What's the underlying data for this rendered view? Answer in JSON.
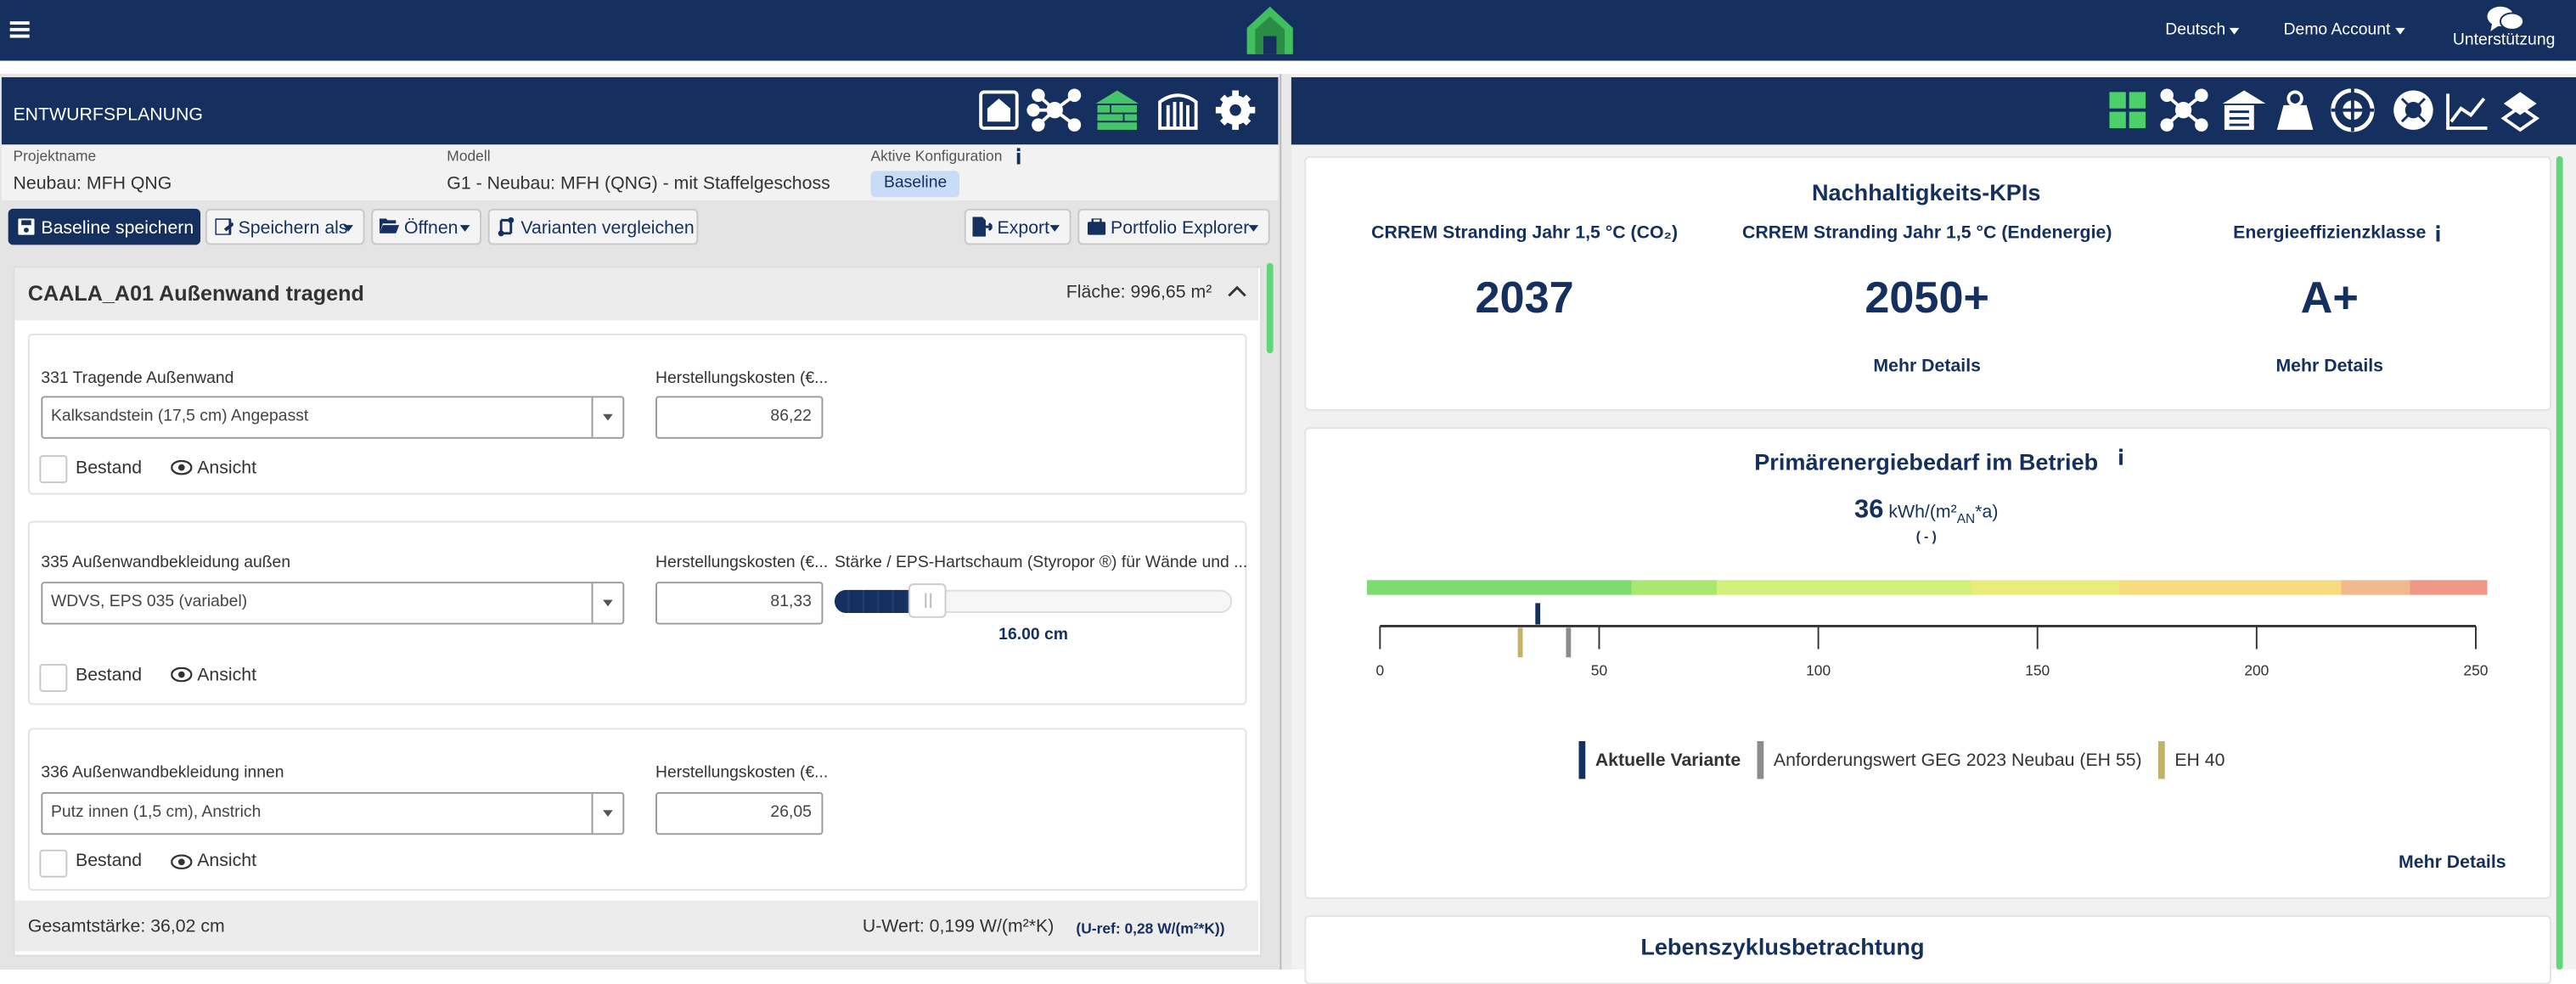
{
  "top_bar": {
    "language": "Deutsch",
    "account": "Demo Account",
    "support": "Unterstützung"
  },
  "left_panel": {
    "title": "ENTWURFSPLANUNG",
    "project": {
      "label": "Projektname",
      "value": "Neubau: MFH QNG"
    },
    "model": {
      "label": "Modell",
      "value": "G1 - Neubau: MFH (QNG) - mit Staffelgeschoss"
    },
    "configuration": {
      "label": "Aktive Konfiguration",
      "value": "Baseline"
    },
    "toolbar": [
      "Baseline speichern",
      "Speichern als",
      "Öffnen",
      "Varianten vergleichen",
      "Export",
      "Portfolio Explorer"
    ],
    "component": {
      "title": "CAALA_A01 Außenwand tragend",
      "area": "Fläche: 996,65 m²",
      "layers": [
        {
          "label": "331 Tragende Außenwand",
          "material": "Kalksandstein (17,5 cm) Angepasst",
          "cost_label": "Herstellungskosten (€...",
          "cost": "86,22",
          "existing": "Bestand",
          "view": "Ansicht"
        },
        {
          "label": "335 Außenwandbekleidung außen",
          "material": "WDVS, EPS 035 (variabel)",
          "cost_label": "Herstellungskosten (€...",
          "cost": "81,33",
          "thickness_label": "Stärke / EPS-Hartschaum (Styropor ®) für Wände und ...",
          "thickness": "16.00 cm",
          "existing": "Bestand",
          "view": "Ansicht"
        },
        {
          "label": "336 Außenwandbekleidung innen",
          "material": "Putz innen (1,5 cm), Anstrich",
          "cost_label": "Herstellungskosten (€...",
          "cost": "26,05",
          "existing": "Bestand",
          "view": "Ansicht"
        }
      ],
      "total_thickness": "Gesamtstärke: 36,02 cm",
      "u_value": "U-Wert: 0,199 W/(m²*K)",
      "u_ref": "(U-ref: 0,28 W/(m²*K))"
    }
  },
  "right_panel": {
    "kpis": {
      "title": "Nachhaltigkeits-KPIs",
      "items": [
        {
          "label": "CRREM Stranding Jahr 1,5 °C (CO₂)",
          "value": "2037"
        },
        {
          "label": "CRREM Stranding Jahr 1,5 °C (Endenergie)",
          "value": "2050+",
          "link": "Mehr Details"
        },
        {
          "label": "Energieeffizienzklasse",
          "value": "A+",
          "link": "Mehr Details"
        }
      ]
    },
    "primary_energy": {
      "title": "Primärenergiebedarf im Betrieb",
      "value": 36,
      "unit": "kWh/(m²",
      "unit_sub": "AN",
      "unit_end": "*a)",
      "note": "( - )",
      "lim": [
        0,
        250
      ],
      "ticks": [
        0,
        50,
        100,
        150,
        200,
        250
      ],
      "markers": [
        {
          "name": "Aktuelle Variante",
          "value": 36,
          "color": "#14305f"
        },
        {
          "name": "Anforderungswert GEG 2023 Neubau (EH 55)",
          "value": 43,
          "color": "#8c8c8c"
        },
        {
          "name": "EH 40",
          "value": 32,
          "color": "#c4b26a"
        }
      ],
      "link": "Mehr Details"
    },
    "lifecycle": {
      "title": "Lebenszyklusbetrachtung"
    }
  }
}
